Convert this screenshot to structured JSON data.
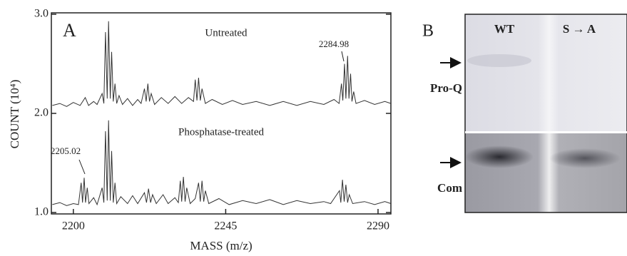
{
  "chart_data": {
    "type": "line",
    "panel_label": "A",
    "xlabel": "MASS (m/z)",
    "ylabel": "COUNT (10⁴)",
    "xlim": [
      2193.5,
      2293.8
    ],
    "ylim": [
      1.0,
      3.0
    ],
    "xticks": [
      2200,
      2245,
      2290
    ],
    "yticks": [
      {
        "value": 1.0,
        "label": "1.0"
      },
      {
        "value": 2.0,
        "label": "2.0"
      },
      {
        "value": 3.0,
        "label": "3.0"
      }
    ],
    "annotations": [
      "Untreated",
      "Phosphatase-treated",
      "2284.98",
      "2205.02"
    ],
    "series": [
      {
        "name": "Untreated",
        "color": "#333333",
        "x": [
          2193.8,
          2196,
          2198,
          2200,
          2202,
          2203.5,
          2204.5,
          2206,
          2207,
          2208.5,
          2209,
          2209.5,
          2210,
          2210.4,
          2210.9,
          2211.3,
          2211.8,
          2212.3,
          2212.8,
          2213.5,
          2214.5,
          2216,
          2217.5,
          2219,
          2220,
          2221,
          2221.5,
          2222,
          2222.5,
          2223,
          2224,
          2226,
          2228,
          2230,
          2232,
          2234,
          2235.5,
          2236,
          2236.5,
          2237,
          2237.5,
          2238,
          2239,
          2241,
          2244,
          2247,
          2250,
          2254,
          2258,
          2262,
          2266,
          2270,
          2274,
          2277,
          2278.5,
          2279.2,
          2279.6,
          2280.1,
          2280.5,
          2281,
          2281.4,
          2281.9,
          2282.3,
          2282.8,
          2283.5,
          2286,
          2289,
          2292,
          2293.8
        ],
        "values": [
          2.08,
          2.1,
          2.07,
          2.11,
          2.08,
          2.16,
          2.08,
          2.12,
          2.09,
          2.2,
          2.1,
          2.82,
          2.15,
          2.93,
          2.15,
          2.62,
          2.12,
          2.3,
          2.1,
          2.18,
          2.09,
          2.15,
          2.08,
          2.14,
          2.1,
          2.25,
          2.12,
          2.3,
          2.12,
          2.2,
          2.09,
          2.16,
          2.1,
          2.17,
          2.1,
          2.16,
          2.12,
          2.34,
          2.13,
          2.36,
          2.13,
          2.25,
          2.1,
          2.14,
          2.09,
          2.13,
          2.09,
          2.12,
          2.08,
          2.12,
          2.08,
          2.12,
          2.09,
          2.14,
          2.1,
          2.3,
          2.13,
          2.5,
          2.15,
          2.58,
          2.15,
          2.4,
          2.12,
          2.22,
          2.1,
          2.13,
          2.09,
          2.12,
          2.1
        ]
      },
      {
        "name": "Phosphatase-treated",
        "color": "#333333",
        "x": [
          2193.8,
          2196,
          2198,
          2200,
          2201.5,
          2202.3,
          2202.7,
          2203.2,
          2203.6,
          2204.1,
          2204.6,
          2206,
          2207,
          2208.5,
          2209,
          2209.5,
          2210,
          2210.4,
          2210.9,
          2211.3,
          2211.8,
          2212.3,
          2212.8,
          2214,
          2216,
          2217.5,
          2219,
          2221,
          2221.6,
          2222.2,
          2222.8,
          2223.4,
          2224.5,
          2226.5,
          2228,
          2230,
          2231,
          2231.6,
          2232,
          2232.5,
          2233,
          2233.5,
          2234.5,
          2236,
          2237,
          2237.5,
          2238,
          2238.5,
          2239,
          2240,
          2243,
          2246,
          2250,
          2254,
          2258,
          2262,
          2266,
          2270,
          2274,
          2276,
          2278.6,
          2279,
          2279.5,
          2280,
          2280.5,
          2281,
          2281.5,
          2282.5,
          2286,
          2289,
          2292,
          2293.8
        ],
        "values": [
          1.08,
          1.1,
          1.07,
          1.09,
          1.08,
          1.3,
          1.1,
          1.35,
          1.1,
          1.25,
          1.09,
          1.15,
          1.08,
          1.25,
          1.1,
          1.82,
          1.12,
          1.93,
          1.12,
          1.62,
          1.1,
          1.3,
          1.09,
          1.16,
          1.09,
          1.17,
          1.09,
          1.2,
          1.1,
          1.24,
          1.1,
          1.18,
          1.09,
          1.18,
          1.09,
          1.15,
          1.1,
          1.32,
          1.11,
          1.36,
          1.11,
          1.25,
          1.09,
          1.14,
          1.3,
          1.11,
          1.32,
          1.11,
          1.22,
          1.09,
          1.14,
          1.08,
          1.12,
          1.09,
          1.13,
          1.08,
          1.12,
          1.09,
          1.11,
          1.09,
          1.22,
          1.1,
          1.33,
          1.11,
          1.28,
          1.1,
          1.18,
          1.09,
          1.11,
          1.08,
          1.11,
          1.09
        ]
      }
    ]
  },
  "panel_b": {
    "panel_label": "B",
    "lanes": [
      "WT",
      "S → A"
    ],
    "rows": [
      "Pro-Q",
      "Com"
    ]
  }
}
